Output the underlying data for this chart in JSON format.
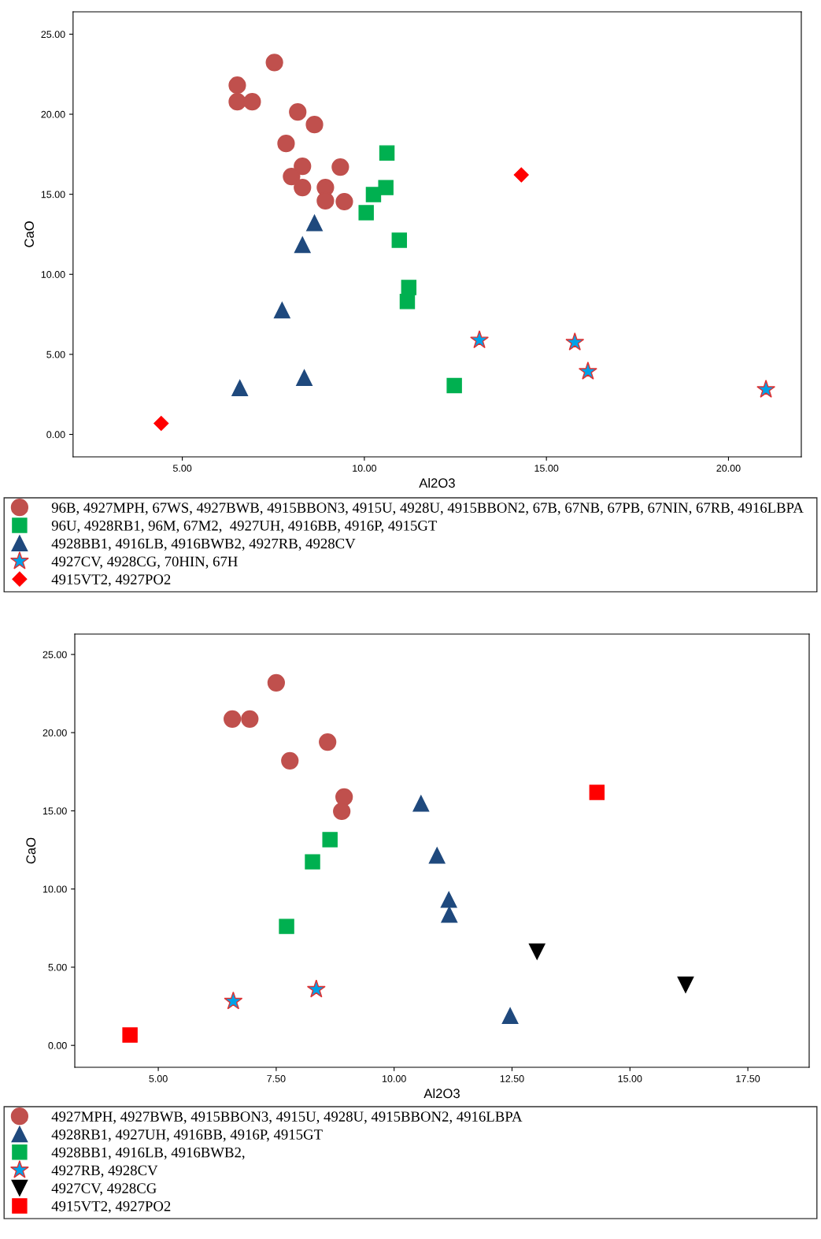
{
  "chart_data": [
    {
      "type": "scatter",
      "xlabel": "Al2O3",
      "ylabel": "CaO",
      "xlim": [
        2.0,
        22.0
      ],
      "ylim": [
        -1.4,
        26.4
      ],
      "xticks": [
        {
          "value": 5,
          "label": "5.00"
        },
        {
          "value": 10,
          "label": "10.00"
        },
        {
          "value": 15,
          "label": "15.00"
        },
        {
          "value": 20,
          "label": "20.00"
        }
      ],
      "yticks": [
        {
          "value": 0,
          "label": "0.00"
        },
        {
          "value": 5,
          "label": "5.00"
        },
        {
          "value": 10,
          "label": "10.00"
        },
        {
          "value": 15,
          "label": "15.00"
        },
        {
          "value": 20,
          "label": "20.00"
        },
        {
          "value": 25,
          "label": "25.00"
        }
      ],
      "grid": false,
      "legend": "bottom",
      "series": [
        {
          "name": "96B, 4927MPH, 67WS, 4927BWB, 4915BBON3, 4915U, 4928U, 4915BBON2, 67B, 67NB, 67PB, 67NIN, 67RB, 4916LBPA",
          "color": "#c0504d",
          "marker": "circle",
          "x": [
            7.53,
            6.51,
            6.51,
            6.92,
            8.17,
            8.63,
            7.85,
            8.3,
            9.34,
            8.0,
            8.3,
            8.93,
            8.93,
            9.45
          ],
          "values": [
            23.23,
            21.81,
            20.78,
            20.78,
            20.14,
            19.35,
            18.17,
            16.75,
            16.7,
            16.11,
            15.42,
            15.42,
            14.59,
            14.54
          ]
        },
        {
          "name": "96U, 4928RB1, 96M, 67M2,  4927UH, 4916BB, 4916P, 4915GT",
          "color": "#00b050",
          "marker": "square",
          "x": [
            10.62,
            10.59,
            10.25,
            10.05,
            10.96,
            11.22,
            11.18,
            12.47
          ],
          "values": [
            17.58,
            15.42,
            14.98,
            13.85,
            12.13,
            9.18,
            8.3,
            3.05
          ]
        },
        {
          "name": "4928BB1, 4916LB, 4916BWB2, 4927RB, 4928CV",
          "color": "#1f497d",
          "marker": "triangle",
          "x": [
            8.63,
            8.3,
            7.74,
            6.58,
            8.35
          ],
          "values": [
            13.21,
            11.84,
            7.76,
            2.9,
            3.54
          ]
        },
        {
          "name": "4927CV, 4928CG, 70HIN, 67H",
          "color": "#00a2e8",
          "marker": "star",
          "x": [
            13.16,
            15.78,
            16.14,
            21.03
          ],
          "values": [
            5.89,
            5.75,
            3.93,
            2.8
          ]
        },
        {
          "name": "4915VT2, 4927PO2",
          "color": "#ff0000",
          "marker": "diamond",
          "x": [
            4.42,
            14.31
          ],
          "values": [
            0.69,
            16.21
          ]
        }
      ]
    },
    {
      "type": "scatter",
      "xlabel": "Al2O3",
      "ylabel": "CaO",
      "xlim": [
        3.23,
        18.8
      ],
      "ylim": [
        -1.4,
        26.3
      ],
      "xticks": [
        {
          "value": 5,
          "label": "5.00"
        },
        {
          "value": 7.5,
          "label": "7.50"
        },
        {
          "value": 10,
          "label": "10.00"
        },
        {
          "value": 12.5,
          "label": "12.50"
        },
        {
          "value": 15,
          "label": "15.00"
        },
        {
          "value": 17.5,
          "label": "17.50"
        }
      ],
      "yticks": [
        {
          "value": 0,
          "label": "0.00"
        },
        {
          "value": 5,
          "label": "5.00"
        },
        {
          "value": 10,
          "label": "10.00"
        },
        {
          "value": 15,
          "label": "15.00"
        },
        {
          "value": 20,
          "label": "20.00"
        },
        {
          "value": 25,
          "label": "25.00"
        }
      ],
      "grid": false,
      "legend": "bottom",
      "series": [
        {
          "name": "4927MPH, 4927BWB, 4915BBON3, 4915U, 4928U, 4915BBON2, 4916LBPA",
          "color": "#c0504d",
          "marker": "circle",
          "x": [
            7.5,
            6.57,
            6.94,
            8.59,
            7.79,
            8.94,
            8.89
          ],
          "values": [
            23.19,
            20.87,
            20.87,
            19.4,
            18.2,
            15.88,
            14.97
          ]
        },
        {
          "name": "4928RB1, 4927UH, 4916BB, 4916P, 4915GT",
          "color": "#1f497d",
          "marker": "triangle",
          "x": [
            10.57,
            10.91,
            11.16,
            11.17,
            12.46
          ],
          "values": [
            15.47,
            12.15,
            9.32,
            8.37,
            1.9
          ]
        },
        {
          "name": "4928BB1, 4916LB, 4916BWB2,",
          "color": "#00b050",
          "marker": "square",
          "x": [
            8.64,
            8.27,
            7.72
          ],
          "values": [
            13.16,
            11.74,
            7.61
          ]
        },
        {
          "name": "4927RB, 4928CV",
          "color": "#00a2e8",
          "marker": "star",
          "x": [
            6.59,
            8.35
          ],
          "values": [
            2.82,
            3.58
          ]
        },
        {
          "name": "4927CV, 4928CG",
          "color": "#000000",
          "marker": "triangle_down",
          "x": [
            13.03,
            16.18
          ],
          "values": [
            6.0,
            3.88
          ]
        },
        {
          "name": "4915VT2, 4927PO2",
          "color": "#ff0000",
          "marker": "square",
          "x": [
            4.4,
            14.3
          ],
          "values": [
            0.66,
            16.18
          ]
        }
      ]
    }
  ]
}
